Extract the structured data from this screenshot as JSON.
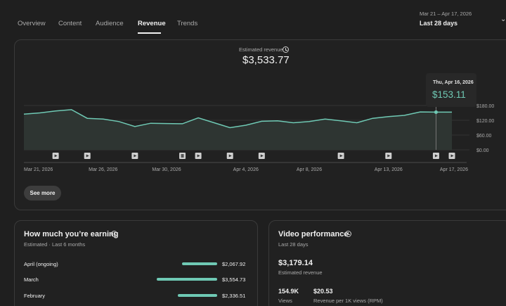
{
  "tabs": [
    {
      "label": "Overview",
      "active": false
    },
    {
      "label": "Content",
      "active": false
    },
    {
      "label": "Audience",
      "active": false
    },
    {
      "label": "Revenue",
      "active": true
    },
    {
      "label": "Trends",
      "active": false
    }
  ],
  "date_range": {
    "range": "Mar 21 – Apr 17, 2026",
    "label": "Last 28 days"
  },
  "summary": {
    "label": "Estimated revenue",
    "value": "$3,533.77"
  },
  "tooltip": {
    "date": "Thu, Apr 16, 2026",
    "value": "$153.11"
  },
  "see_more": "See more",
  "chart_data": {
    "type": "area",
    "x": [
      "Mar 21",
      "Mar 22",
      "Mar 23",
      "Mar 24",
      "Mar 25",
      "Mar 26",
      "Mar 27",
      "Mar 28",
      "Mar 29",
      "Mar 30",
      "Mar 31",
      "Apr 1",
      "Apr 2",
      "Apr 3",
      "Apr 4",
      "Apr 5",
      "Apr 6",
      "Apr 7",
      "Apr 8",
      "Apr 9",
      "Apr 10",
      "Apr 11",
      "Apr 12",
      "Apr 13",
      "Apr 14",
      "Apr 15",
      "Apr 16",
      "Apr 17"
    ],
    "values": [
      145,
      150,
      158,
      163,
      128,
      125,
      115,
      95,
      108,
      107,
      106,
      130,
      110,
      90,
      100,
      116,
      118,
      110,
      115,
      125,
      118,
      110,
      128,
      135,
      140,
      154,
      153,
      153
    ],
    "x_tick_labels": [
      "Mar 21, 2026",
      "Mar 26, 2026",
      "Mar 30, 2026",
      "Apr 4, 2026",
      "Apr 8, 2026",
      "Apr 13, 2026",
      "Apr 17, 2026"
    ],
    "y_tick_labels": [
      "$180.00",
      "$120.00",
      "$60.00",
      "$0.00"
    ],
    "ylim": [
      0,
      180
    ],
    "color": "#6fc9b4",
    "markers": [
      {
        "date": "Mar 23",
        "kind": "video"
      },
      {
        "date": "Mar 25",
        "kind": "video"
      },
      {
        "date": "Mar 28",
        "kind": "video"
      },
      {
        "date": "Mar 31",
        "kind": "short"
      },
      {
        "date": "Apr 1",
        "kind": "video"
      },
      {
        "date": "Apr 3",
        "kind": "video"
      },
      {
        "date": "Apr 5",
        "kind": "video"
      },
      {
        "date": "Apr 10",
        "kind": "video"
      },
      {
        "date": "Apr 13",
        "kind": "video"
      },
      {
        "date": "Apr 16",
        "kind": "video"
      },
      {
        "date": "Apr 17",
        "kind": "video"
      }
    ]
  },
  "earnings": {
    "title": "How much you’re earning",
    "subtitle": "Estimated · Last 6 months",
    "rows": [
      {
        "month": "April (ongoing)",
        "amount": "$2,067.92",
        "value": 2067.92
      },
      {
        "month": "March",
        "amount": "$3,554.73",
        "value": 3554.73
      },
      {
        "month": "February",
        "amount": "$2,336.51",
        "value": 2336.51
      }
    ]
  },
  "video_performance": {
    "title": "Video performance",
    "subtitle": "Last 28 days",
    "revenue_value": "$3,179.14",
    "revenue_label": "Estimated revenue",
    "views_value": "154.9K",
    "views_label": "Views",
    "rpm_value": "$20.53",
    "rpm_label": "Revenue per 1K views (RPM)"
  }
}
